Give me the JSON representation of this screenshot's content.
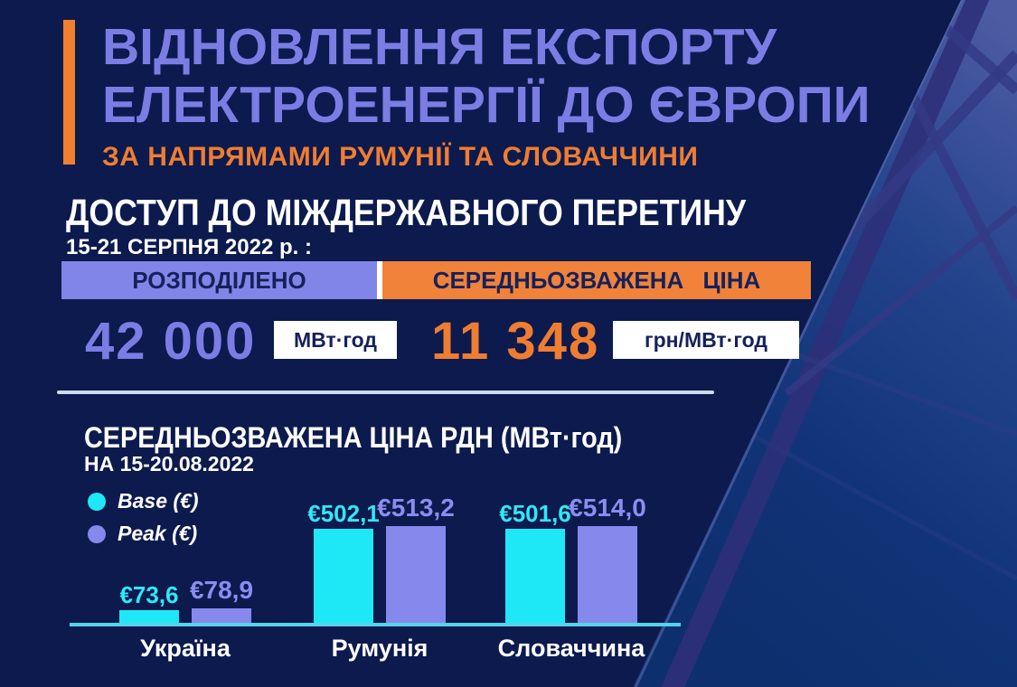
{
  "colors": {
    "background": "#0c1a4e",
    "title_periwinkle": "#7b7de4",
    "accent_orange": "#ef7d31",
    "header_bar_purple": "#8285e8",
    "header_bar_orange": "#f0823a",
    "bar_text_navy": "#16215a",
    "white": "#ffffff",
    "base_cyan": "#1fe8f6",
    "peak_purple": "#8688ec",
    "axis_cyan": "#55d2ea"
  },
  "header": {
    "title_line1": "ВІДНОВЛЕННЯ ЕКСПОРТУ",
    "title_line2": "ЕЛЕКТРОЕНЕРГІЇ ДО ЄВРОПИ",
    "subtitle": "ЗА НАПРЯМАМИ РУМУНІЇ ТА СЛОВАЧЧИНИ"
  },
  "access_section": {
    "heading": "ДОСТУП ДО МІЖДЕРЖАВНОГО ПЕРЕТИНУ",
    "period": "15-21 СЕРПНЯ 2022 р. :",
    "allocated_header": "РОЗПОДІЛЕНО",
    "price_header": "СЕРЕДНЬОЗВАЖЕНА ЦІНА",
    "allocated_value": "42 000",
    "allocated_unit": "МВт·год",
    "price_value": "11 348",
    "price_unit": "грн/МВт·год"
  },
  "chart": {
    "title": "СЕРЕДНЬОЗВАЖЕНА ЦІНА РДН (МВт·год)",
    "period": "НА 15-20.08.2022"
  },
  "chart_data": {
    "type": "bar",
    "title": "СЕРЕДНЬОЗВАЖЕНА ЦІНА РДН (МВт·год)",
    "subtitle": "НА 15-20.08.2022",
    "categories": [
      "Україна",
      "Румунія",
      "Словаччина"
    ],
    "series": [
      {
        "name": "Base (€)",
        "color": "#1fe8f6",
        "values": [
          73.6,
          502.1,
          501.6
        ],
        "labels": [
          "€73,6",
          "€502,1",
          "€501,6"
        ]
      },
      {
        "name": "Peak (€)",
        "color": "#8688ec",
        "values": [
          78.9,
          513.2,
          514.0
        ],
        "labels": [
          "€78,9",
          "€513,2",
          "€514,0"
        ]
      }
    ],
    "ylim": [
      0,
      560
    ],
    "grid": false,
    "legend_position": "left",
    "xlabel": "",
    "ylabel": ""
  }
}
